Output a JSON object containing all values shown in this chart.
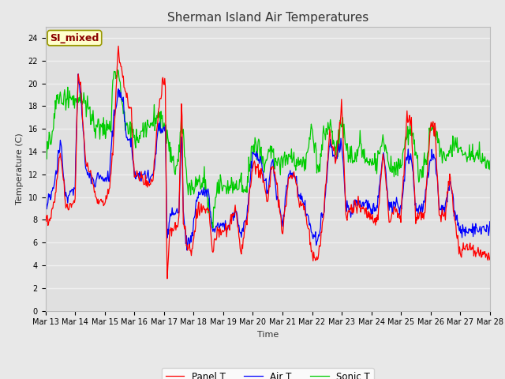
{
  "title": "Sherman Island Air Temperatures",
  "xlabel": "Time",
  "ylabel": "Temperature (C)",
  "ylim": [
    0,
    25
  ],
  "yticks": [
    0,
    2,
    4,
    6,
    8,
    10,
    12,
    14,
    16,
    18,
    20,
    22,
    24
  ],
  "x_tick_labels": [
    "Mar 13",
    "Mar 14",
    "Mar 15",
    "Mar 16",
    "Mar 17",
    "Mar 18",
    "Mar 19",
    "Mar 20",
    "Mar 21",
    "Mar 22",
    "Mar 23",
    "Mar 24",
    "Mar 25",
    "Mar 26",
    "Mar 27",
    "Mar 28"
  ],
  "panel_color": "#ff0000",
  "air_color": "#0000ff",
  "sonic_color": "#00cc00",
  "outer_bg_color": "#e8e8e8",
  "plot_bg_color": "#e0e0e0",
  "grid_color": "#f0f0f0",
  "legend_label_panel": "Panel T",
  "legend_label_air": "Air T",
  "legend_label_sonic": "Sonic T",
  "watermark_text": "SI_mixed",
  "watermark_color": "#8b0000",
  "watermark_bg": "#ffffcc",
  "title_fontsize": 11,
  "axis_fontsize": 8,
  "tick_fontsize": 7
}
